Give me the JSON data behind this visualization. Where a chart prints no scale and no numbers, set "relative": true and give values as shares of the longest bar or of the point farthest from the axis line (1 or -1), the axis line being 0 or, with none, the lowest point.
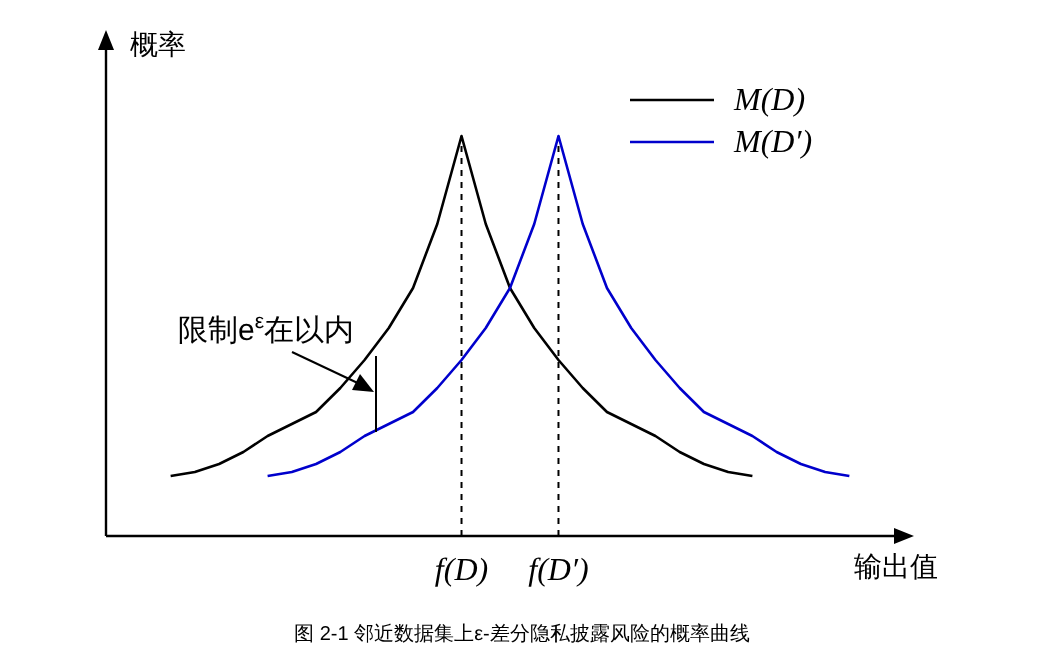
{
  "chart_data": {
    "type": "line",
    "relative": true,
    "xlabel": "输出值",
    "ylabel": "概率",
    "categories": [
      null,
      null,
      null,
      null,
      null,
      null,
      null,
      null,
      null,
      null,
      null,
      null,
      null,
      "f(D)",
      null,
      null,
      null,
      "f(D′)",
      null,
      null,
      null,
      null,
      null,
      null,
      null,
      null,
      null,
      null,
      null,
      null
    ],
    "series": [
      {
        "name": "M(D)",
        "color": "#000000",
        "values": [
          null,
          0.15,
          0.16,
          0.18,
          0.21,
          0.25,
          0.28,
          0.31,
          0.37,
          0.44,
          0.52,
          0.62,
          0.78,
          1,
          0.78,
          0.62,
          0.52,
          0.44,
          0.37,
          0.31,
          0.28,
          0.25,
          0.21,
          0.18,
          0.16,
          0.15,
          null,
          null,
          null,
          null
        ]
      },
      {
        "name": "M(D′)",
        "color": "#0000cc",
        "values": [
          null,
          null,
          null,
          null,
          null,
          0.15,
          0.16,
          0.18,
          0.21,
          0.25,
          0.28,
          0.31,
          0.37,
          0.44,
          0.52,
          0.62,
          0.78,
          1,
          0.78,
          0.62,
          0.52,
          0.44,
          0.37,
          0.31,
          0.28,
          0.25,
          0.21,
          0.18,
          0.16,
          0.15
        ]
      }
    ],
    "ref_lines": [
      {
        "axis": "x",
        "value": "f(D)",
        "color": "#000000",
        "line_style": "dashed"
      },
      {
        "axis": "x",
        "value": "f(D′)",
        "color": "#000000",
        "line_style": "dashed"
      }
    ],
    "annotations": [
      "限制e$^{ε}$在以内",
      "图 2-1 邻近数据集上ε-差分隐私披露风险的概率曲线"
    ],
    "legend": "top right",
    "marker": "none",
    "line_style": "solid",
    "grid": false
  }
}
